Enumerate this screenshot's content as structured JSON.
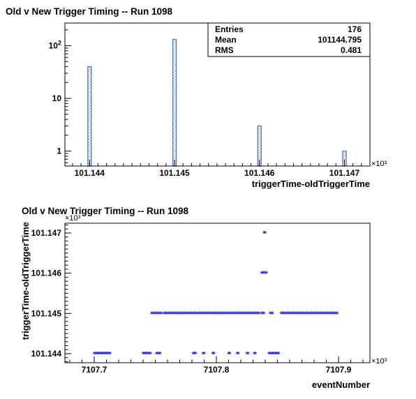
{
  "chart_data": [
    {
      "type": "bar",
      "title": "Old v New Trigger Timing -- Run 1098",
      "xlabel": "triggerTime-oldTriggerTime",
      "ylabel": "",
      "x_multiplier": "×10³",
      "x_ticks": [
        "101.144",
        "101.145",
        "101.146",
        "101.147"
      ],
      "y_scale": "log",
      "y_ticks": [
        "1",
        "10",
        "10²"
      ],
      "stats": {
        "entries_label": "Entries",
        "entries": "176",
        "mean_label": "Mean",
        "mean": "101144.795",
        "rms_label": "RMS",
        "rms": "0.481"
      },
      "bars": [
        {
          "x": 101144,
          "count": 40
        },
        {
          "x": 101145,
          "count": 132
        },
        {
          "x": 101146,
          "count": 3
        },
        {
          "x": 101147,
          "count": 1
        }
      ],
      "fill_color": "#5b7fb6"
    },
    {
      "type": "scatter",
      "title": "Old v New Trigger Timing -- Run 1098",
      "xlabel": "eventNumber",
      "ylabel": "triggerTime-oldTriggerTime",
      "x_multiplier": "×10³",
      "y_multiplier": "×10³",
      "x_ticks": [
        "7107.7",
        "7107.8",
        "7107.9"
      ],
      "y_ticks": [
        "101.144",
        "101.145",
        "101.146",
        "101.147"
      ],
      "marker": "*",
      "marker_color": "#3333cc",
      "segments": [
        {
          "y": 101144,
          "x_from": 7107700,
          "x_to": 7107713
        },
        {
          "y": 101144,
          "x_from": 7107740,
          "x_to": 7107746
        },
        {
          "y": 101144,
          "x_from": 7107751,
          "x_to": 7107754
        },
        {
          "y": 101144,
          "x_from": 7107781,
          "x_to": 7107783
        },
        {
          "y": 101144,
          "x_from": 7107789,
          "x_to": 7107790
        },
        {
          "y": 101144,
          "x_from": 7107797,
          "x_to": 7107798
        },
        {
          "y": 101144,
          "x_from": 7107810,
          "x_to": 7107811
        },
        {
          "y": 101144,
          "x_from": 7107817,
          "x_to": 7107818
        },
        {
          "y": 101144,
          "x_from": 7107825,
          "x_to": 7107826
        },
        {
          "y": 101144,
          "x_from": 7107831,
          "x_to": 7107832
        },
        {
          "y": 101144,
          "x_from": 7107843,
          "x_to": 7107851
        },
        {
          "y": 101145,
          "x_from": 7107747,
          "x_to": 7107755
        },
        {
          "y": 101145,
          "x_from": 7107757,
          "x_to": 7107835
        },
        {
          "y": 101145,
          "x_from": 7107837,
          "x_to": 7107839
        },
        {
          "y": 101145,
          "x_from": 7107844,
          "x_to": 7107846
        },
        {
          "y": 101145,
          "x_from": 7107853,
          "x_to": 7107899
        },
        {
          "y": 101146,
          "x_from": 7107837,
          "x_to": 7107841
        },
        {
          "y": 101147,
          "x_from": 7107839,
          "x_to": 7107840
        }
      ],
      "x_step": 1
    }
  ]
}
